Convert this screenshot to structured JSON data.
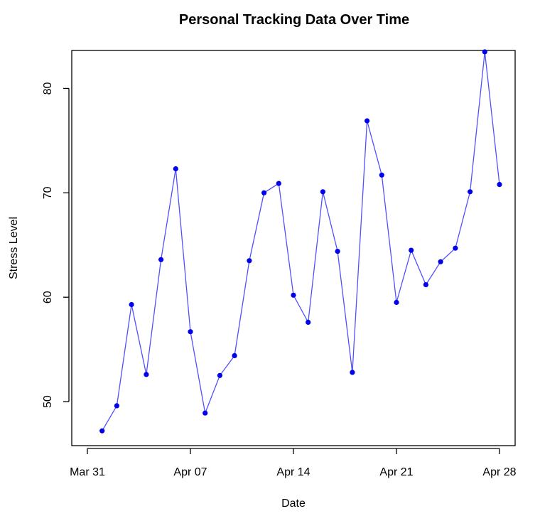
{
  "chart_data": {
    "type": "line",
    "title": "Personal Tracking Data Over Time",
    "xlabel": "Date",
    "ylabel": "Stress Level",
    "x": [
      "2024-04-01",
      "2024-04-02",
      "2024-04-03",
      "2024-04-04",
      "2024-04-05",
      "2024-04-06",
      "2024-04-07",
      "2024-04-08",
      "2024-04-09",
      "2024-04-10",
      "2024-04-11",
      "2024-04-12",
      "2024-04-13",
      "2024-04-14",
      "2024-04-15",
      "2024-04-16",
      "2024-04-17",
      "2024-04-18",
      "2024-04-19",
      "2024-04-20",
      "2024-04-21",
      "2024-04-22",
      "2024-04-23",
      "2024-04-24",
      "2024-04-25",
      "2024-04-26",
      "2024-04-27",
      "2024-04-28"
    ],
    "series": [
      {
        "values": [
          47.2,
          49.6,
          59.3,
          52.6,
          63.6,
          72.3,
          56.7,
          48.9,
          52.5,
          54.4,
          63.5,
          70.0,
          70.9,
          60.2,
          57.6,
          70.1,
          64.4,
          52.8,
          76.9,
          71.7,
          59.5,
          64.5,
          61.2,
          63.4,
          64.7,
          70.1,
          83.5,
          70.8
        ],
        "color": "#0000ff"
      }
    ],
    "xlim": [
      "2024-03-31",
      "2024-04-28"
    ],
    "ylim": [
      45,
      85
    ],
    "x_ticks": [
      "2024-03-31",
      "2024-04-07",
      "2024-04-14",
      "2024-04-21",
      "2024-04-28"
    ],
    "x_tick_labels": [
      "Mar 31",
      "Apr 07",
      "Apr 14",
      "Apr 21",
      "Apr 28"
    ],
    "y_ticks": [
      50,
      60,
      70,
      80
    ],
    "grid": false,
    "legend": "none",
    "line_color": "#5050ff",
    "point_color": "#0000ee"
  }
}
